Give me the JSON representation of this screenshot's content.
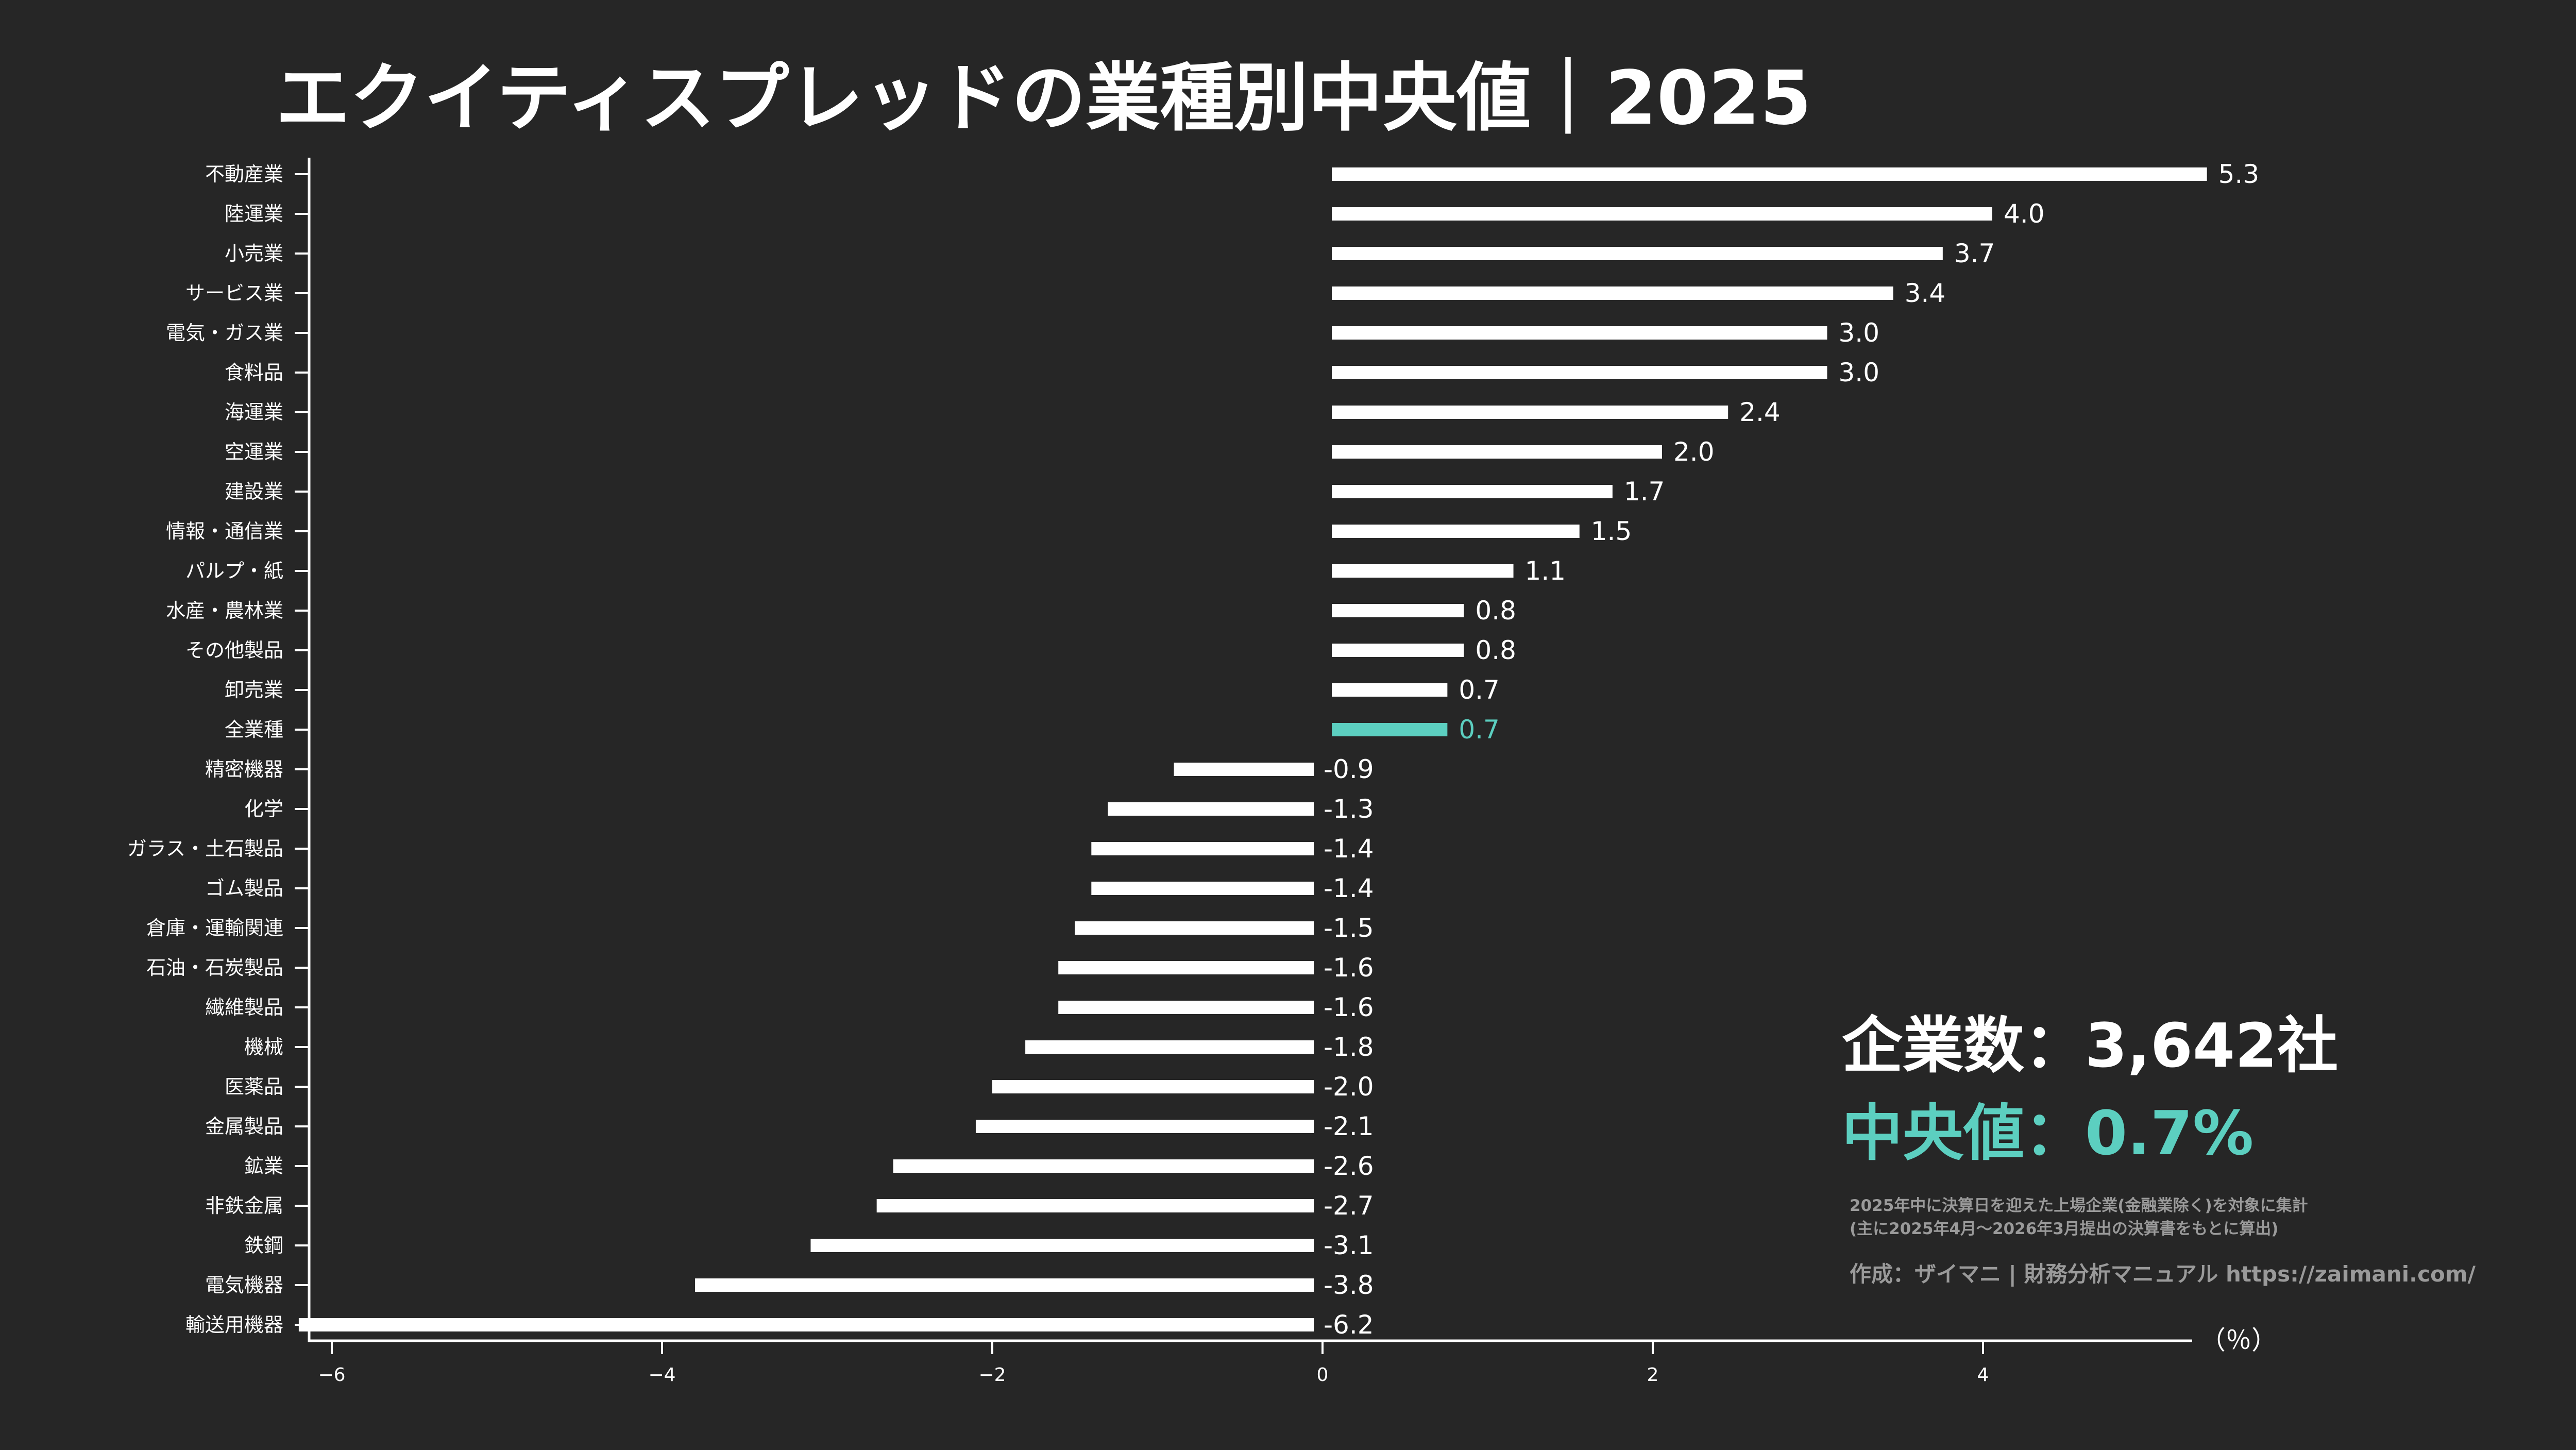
{
  "chart_data": {
    "type": "bar",
    "orientation": "horizontal",
    "title": "エクイティスプレッドの業種別中央値｜2025",
    "xlabel": "（％）",
    "ylabel": "",
    "xlim": [
      -6.2,
      5.3
    ],
    "xticks": [
      -6,
      -4,
      -2,
      0,
      2,
      4
    ],
    "grid": false,
    "categories": [
      "不動産業",
      "陸運業",
      "小売業",
      "サービス業",
      "電気・ガス業",
      "食料品",
      "海運業",
      "空運業",
      "建設業",
      "情報・通信業",
      "パルプ・紙",
      "水産・農林業",
      "その他製品",
      "卸売業",
      "全業種",
      "精密機器",
      "化学",
      "ガラス・土石製品",
      "ゴム製品",
      "倉庫・運輸関連",
      "石油・石炭製品",
      "繊維製品",
      "機械",
      "医薬品",
      "金属製品",
      "鉱業",
      "非鉄金属",
      "鉄鋼",
      "電気機器",
      "輸送用機器"
    ],
    "values": [
      5.3,
      4.0,
      3.7,
      3.4,
      3.0,
      3.0,
      2.4,
      2.0,
      1.7,
      1.5,
      1.1,
      0.8,
      0.8,
      0.7,
      0.7,
      -0.9,
      -1.3,
      -1.4,
      -1.4,
      -1.5,
      -1.6,
      -1.6,
      -1.8,
      -2.0,
      -2.1,
      -2.6,
      -2.7,
      -3.1,
      -3.8,
      -6.2
    ],
    "value_labels": [
      "5.3",
      "4.0",
      "3.7",
      "3.4",
      "3.0",
      "3.0",
      "2.4",
      "2.0",
      "1.7",
      "1.5",
      "1.1",
      "0.8",
      "0.8",
      "0.7",
      "0.7",
      "-0.9",
      "-1.3",
      "-1.4",
      "-1.4",
      "-1.5",
      "-1.6",
      "-1.6",
      "-1.8",
      "-2.0",
      "-2.1",
      "-2.6",
      "-2.7",
      "-3.1",
      "-3.8",
      "-6.2"
    ],
    "highlight_category": "全業種",
    "colors": {
      "bar": "#ffffff",
      "highlight": "#5ccfc0",
      "background": "#262626"
    }
  },
  "annotations": {
    "company_count": "企業数：3,642社",
    "median": "中央値：0.7%",
    "note_line1": "2025年中に決算日を迎えた上場企業(金融業除く)を対象に集計",
    "note_line2": "(主に2025年4月～2026年3月提出の決算書をもとに算出)",
    "credit": "作成：ザイマニ | 財務分析マニュアル https://zaimani.com/"
  }
}
